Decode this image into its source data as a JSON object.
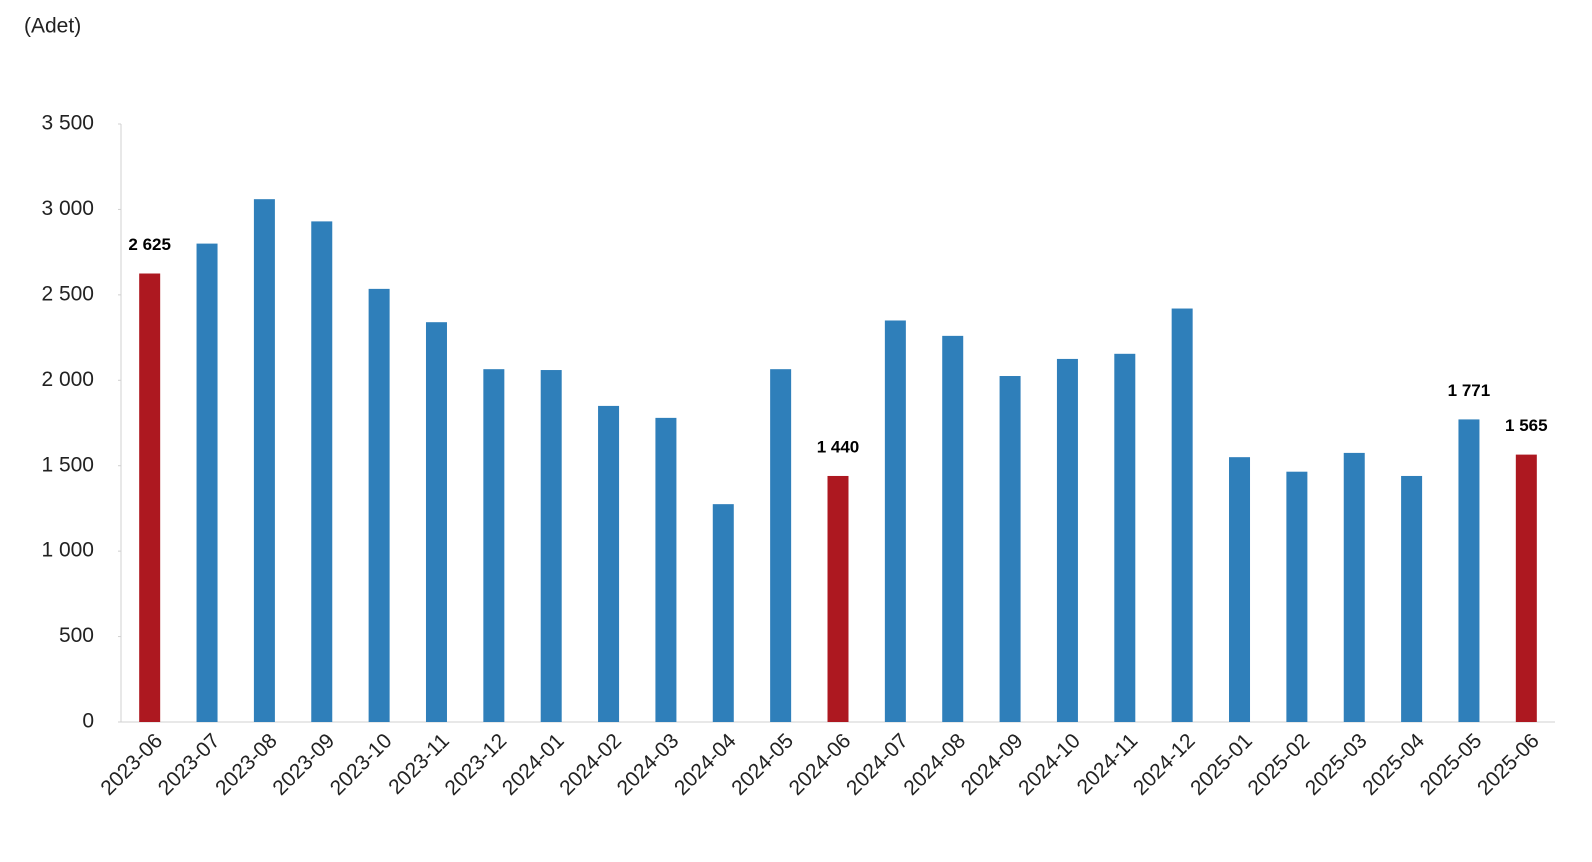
{
  "chart_data": {
    "type": "bar",
    "y_axis_label": "(Adet)",
    "categories": [
      "2023-06",
      "2023-07",
      "2023-08",
      "2023-09",
      "2023-10",
      "2023-11",
      "2023-12",
      "2024-01",
      "2024-02",
      "2024-03",
      "2024-04",
      "2024-05",
      "2024-06",
      "2024-07",
      "2024-08",
      "2024-09",
      "2024-10",
      "2024-11",
      "2024-12",
      "2025-01",
      "2025-02",
      "2025-03",
      "2025-04",
      "2025-05",
      "2025-06"
    ],
    "values": [
      2625,
      2800,
      3060,
      2930,
      2535,
      2340,
      2065,
      2060,
      1850,
      1780,
      1275,
      2065,
      1440,
      2350,
      2260,
      2025,
      2125,
      2155,
      2420,
      1550,
      1465,
      1575,
      1440,
      1771,
      1565
    ],
    "value_labels": [
      "2 625",
      null,
      null,
      null,
      null,
      null,
      null,
      null,
      null,
      null,
      null,
      null,
      "1 440",
      null,
      null,
      null,
      null,
      null,
      null,
      null,
      null,
      null,
      null,
      "1 771",
      "1 565"
    ],
    "colors": [
      "#ad1820",
      "#2f7fba",
      "#2f7fba",
      "#2f7fba",
      "#2f7fba",
      "#2f7fba",
      "#2f7fba",
      "#2f7fba",
      "#2f7fba",
      "#2f7fba",
      "#2f7fba",
      "#2f7fba",
      "#ad1820",
      "#2f7fba",
      "#2f7fba",
      "#2f7fba",
      "#2f7fba",
      "#2f7fba",
      "#2f7fba",
      "#2f7fba",
      "#2f7fba",
      "#2f7fba",
      "#2f7fba",
      "#2f7fba",
      "#ad1820"
    ],
    "ylim": [
      0,
      3500
    ],
    "yticks": [
      0,
      500,
      {
        "value": 1000,
        "label": "1 000"
      },
      {
        "value": 1500,
        "label": "1 500"
      },
      {
        "value": 2000,
        "label": "2 000"
      },
      {
        "value": 2500,
        "label": "2 500"
      },
      {
        "value": 3000,
        "label": "3 000"
      },
      {
        "value": 3500,
        "label": "3 500"
      }
    ],
    "grid": false
  }
}
